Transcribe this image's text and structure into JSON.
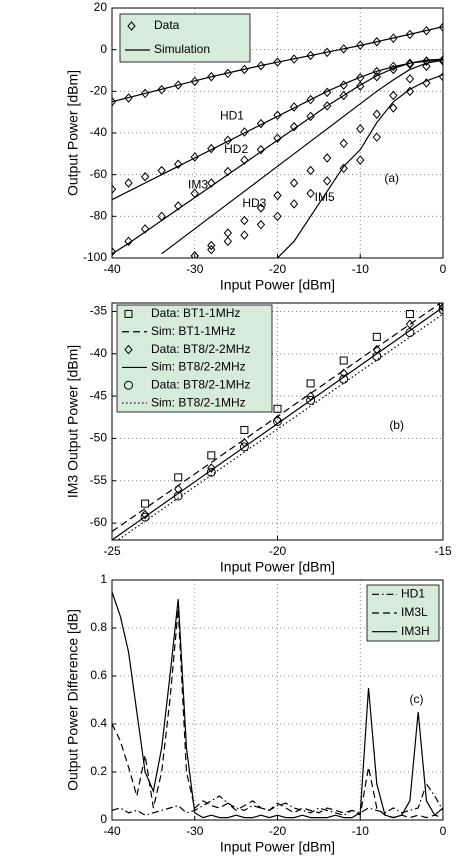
{
  "chart_data": [
    {
      "type": "line",
      "panel_label": "(a)",
      "xlabel": "Input Power [dBm]",
      "ylabel": "Output Power [dBm]",
      "xlim": [
        -40,
        0
      ],
      "ylim": [
        -100,
        20
      ],
      "xticks": [
        -40,
        -30,
        -20,
        -10,
        0
      ],
      "yticks": [
        -100,
        -80,
        -60,
        -40,
        -20,
        0,
        20
      ],
      "grid": true,
      "legend": {
        "data": "Data",
        "simulation": "Simulation"
      },
      "data_marker": "diamond",
      "color": "#000000",
      "x": [
        -40,
        -38,
        -36,
        -34,
        -32,
        -30,
        -28,
        -26,
        -24,
        -22,
        -20,
        -18,
        -16,
        -14,
        -12,
        -10,
        -8,
        -6,
        -4,
        -2,
        0
      ],
      "curves": [
        {
          "label": "HD1",
          "simulation": [
            -25,
            -23,
            -21,
            -19,
            -17,
            -15,
            -13,
            -11.2,
            -9.4,
            -7.6,
            -6,
            -4.4,
            -2.8,
            -1.2,
            0.4,
            2,
            3.8,
            5.6,
            7.4,
            9.2,
            11
          ],
          "data": [
            -25,
            -23.2,
            -21,
            -19.2,
            -17,
            -15.2,
            -13,
            -11.4,
            -9.5,
            -7.7,
            -6,
            -4.5,
            -2.8,
            -1.3,
            0.4,
            2.1,
            3.8,
            5.5,
            7.3,
            9.1,
            10.8
          ]
        },
        {
          "label": "HD2",
          "simulation": [
            -72,
            -68,
            -64,
            -60,
            -56,
            -52,
            -48,
            -44,
            -40,
            -36,
            -32,
            -28,
            -24,
            -20,
            -16.5,
            -13.2,
            -10.4,
            -8.2,
            -6.5,
            -5.5,
            -5
          ],
          "data": [
            -67,
            -64,
            -61,
            -58,
            -55,
            -51.5,
            -47.5,
            -43.5,
            -39.5,
            -35.5,
            -31.5,
            -27.5,
            -24,
            -20.5,
            -17,
            -13.5,
            -10.5,
            -8,
            -6.5,
            -5.5,
            -5
          ]
        },
        {
          "label": "IM3",
          "simulation": [
            -98,
            -93,
            -87.5,
            -82,
            -76.5,
            -71,
            -65.5,
            -60,
            -54.5,
            -49,
            -43.5,
            -38,
            -32.5,
            -27,
            -22,
            -17,
            -12.5,
            -9,
            -6.5,
            -5,
            -4.5
          ],
          "data": [
            -97,
            -92,
            -86,
            -80,
            -75,
            -69,
            -64,
            -58.5,
            -53,
            -48,
            -42.5,
            -37,
            -32,
            -27,
            -22,
            -17.5,
            -13,
            -9.5,
            -7,
            -5.5,
            -5
          ]
        },
        {
          "label": "HD3",
          "simulation": [
            null,
            null,
            null,
            -98,
            -92,
            -86,
            -80,
            -74,
            -68,
            -62,
            -56,
            -50,
            -44,
            -38,
            -32,
            -26,
            -20,
            -14.5,
            -9.5,
            -6.5,
            -5
          ],
          "data": [
            null,
            null,
            null,
            null,
            null,
            -99,
            -94,
            -88,
            -82,
            -76,
            -70,
            -64,
            -58,
            -52,
            -45,
            -38,
            -31,
            -22,
            -14,
            -8,
            -5.5
          ]
        },
        {
          "label": "IM5",
          "simulation": [
            null,
            null,
            null,
            null,
            null,
            null,
            null,
            null,
            null,
            null,
            -100,
            -92,
            -80,
            -68,
            -56,
            -48,
            -35,
            -25,
            -19,
            -15,
            -12
          ],
          "data": [
            null,
            null,
            null,
            null,
            null,
            -99,
            -96,
            -92,
            -89,
            -84,
            -80,
            -74,
            -69,
            -63,
            -57,
            -53,
            -42,
            -28,
            -20,
            -16,
            -13
          ]
        }
      ]
    },
    {
      "type": "line",
      "panel_label": "(b)",
      "xlabel": "Input Power [dBm]",
      "ylabel": "IM3 Output Power [dBm]",
      "xlim": [
        -25,
        -15
      ],
      "ylim": [
        -62,
        -34
      ],
      "xticks": [
        -25,
        -20,
        -15
      ],
      "yticks": [
        -60,
        -55,
        -50,
        -45,
        -40,
        -35
      ],
      "grid": true,
      "color": "#000000",
      "series": [
        {
          "name": "Data: BT1-1MHz",
          "marker": "square",
          "x": [
            -24,
            -23,
            -22,
            -21,
            -20,
            -19,
            -18,
            -17,
            -16,
            -15
          ],
          "values": [
            -57.7,
            -54.6,
            -52,
            -49,
            -46.5,
            -43.5,
            -40.8,
            -38,
            -35.3,
            -34.3
          ]
        },
        {
          "name": "Sim: BT1-1MHz",
          "dash": "dashed",
          "x": [
            -25,
            -15
          ],
          "values": [
            -61,
            -33.8
          ]
        },
        {
          "name": "Data: BT8/2-2MHz",
          "marker": "diamond",
          "x": [
            -24,
            -23,
            -22,
            -21,
            -20,
            -19,
            -18,
            -17,
            -16,
            -15
          ],
          "values": [
            -59,
            -56,
            -53.5,
            -50.5,
            -47.8,
            -45,
            -42.3,
            -39.5,
            -36.5,
            -34.5
          ]
        },
        {
          "name": "Sim: BT8/2-2MHz",
          "dash": "solid",
          "x": [
            -25,
            -15
          ],
          "values": [
            -62,
            -34.5
          ]
        },
        {
          "name": "Data: BT8/2-1MHz",
          "marker": "circle",
          "x": [
            -24,
            -23,
            -22,
            -21,
            -20,
            -19,
            -18,
            -17,
            -16,
            -15
          ],
          "values": [
            -59.3,
            -56.8,
            -54,
            -51,
            -48,
            -45.5,
            -43,
            -40.3,
            -37.5,
            -34.8
          ]
        },
        {
          "name": "Sim: BT8/2-1MHz",
          "dash": "dotted",
          "x": [
            -25,
            -15
          ],
          "values": [
            -62.5,
            -35.3
          ]
        }
      ]
    },
    {
      "type": "line",
      "panel_label": "(c)",
      "xlabel": "Input Power [dBm]",
      "ylabel": "Output Power Difference [dB]",
      "xlim": [
        -40,
        0
      ],
      "ylim": [
        0,
        1
      ],
      "xticks": [
        -40,
        -30,
        -20,
        -10,
        0
      ],
      "yticks": [
        0,
        0.2,
        0.4,
        0.6,
        0.8,
        1
      ],
      "grid": true,
      "color": "#000000",
      "series": [
        {
          "name": "HD1",
          "dash": "dashdot",
          "x": [
            -40,
            -39,
            -38,
            -37,
            -36,
            -35,
            -34,
            -33,
            -32,
            -31,
            -30,
            -29,
            -28,
            -27,
            -26,
            -25,
            -24,
            -23,
            -22,
            -21,
            -20,
            -19,
            -18,
            -17,
            -16,
            -15,
            -14,
            -13,
            -12,
            -11,
            -10,
            -9,
            -8,
            -7,
            -6,
            -5,
            -4,
            -3,
            -2,
            -1,
            0
          ],
          "values": [
            0.04,
            0.05,
            0.03,
            0.04,
            0.02,
            0.03,
            0.04,
            0.05,
            0.06,
            0.03,
            0.04,
            0.06,
            0.08,
            0.1,
            0.07,
            0.05,
            0.04,
            0.06,
            0.05,
            0.04,
            0.06,
            0.07,
            0.05,
            0.04,
            0.03,
            0.05,
            0.04,
            0.03,
            0.02,
            0.04,
            0.03,
            0.05,
            0.04,
            0.03,
            0.05,
            0.03,
            0.04,
            0.05,
            0.15,
            0.1,
            0.04
          ]
        },
        {
          "name": "IM3L",
          "dash": "dashed",
          "x": [
            -40,
            -39,
            -38,
            -37,
            -36,
            -35,
            -34,
            -33,
            -32,
            -31,
            -30,
            -29,
            -28,
            -27,
            -26,
            -25,
            -24,
            -23,
            -22,
            -21,
            -20,
            -19,
            -18,
            -17,
            -16,
            -15,
            -14,
            -13,
            -12,
            -11,
            -10,
            -9,
            -8,
            -7,
            -6,
            -5,
            -4,
            -3,
            -2,
            -1,
            0
          ],
          "values": [
            0.4,
            0.33,
            0.22,
            0.1,
            0.27,
            0.05,
            0.2,
            0.5,
            0.88,
            0.2,
            0.05,
            0.08,
            0.06,
            0.05,
            0.07,
            0.04,
            0.06,
            0.08,
            0.05,
            0.04,
            0.07,
            0.05,
            0.03,
            0.05,
            0.04,
            0.03,
            0.05,
            0.04,
            0.03,
            0.04,
            0.02,
            0.22,
            0.05,
            0.02,
            0.01,
            0.02,
            0.01,
            0.02,
            0.01,
            0.02,
            0.01
          ]
        },
        {
          "name": "IM3H",
          "dash": "solid",
          "x": [
            -40,
            -39,
            -38,
            -37,
            -36,
            -35,
            -34,
            -33,
            -32,
            -31,
            -30,
            -29,
            -28,
            -27,
            -26,
            -25,
            -24,
            -23,
            -22,
            -21,
            -20,
            -19,
            -18,
            -17,
            -16,
            -15,
            -14,
            -13,
            -12,
            -11,
            -10,
            -9,
            -8,
            -7,
            -6,
            -5,
            -4,
            -3,
            -2,
            -1,
            0
          ],
          "values": [
            0.95,
            0.85,
            0.7,
            0.45,
            0.2,
            0.12,
            0.3,
            0.6,
            0.92,
            0.3,
            0.03,
            0.01,
            0.02,
            0.01,
            0.01,
            0.02,
            0.01,
            0.01,
            0.02,
            0.01,
            0.02,
            0.01,
            0.01,
            0.02,
            0.01,
            0.01,
            0.01,
            0.02,
            0.01,
            0.01,
            0.03,
            0.55,
            0.15,
            0.02,
            0.01,
            0.02,
            0.08,
            0.45,
            0.08,
            0.02,
            0.05
          ]
        }
      ]
    }
  ]
}
